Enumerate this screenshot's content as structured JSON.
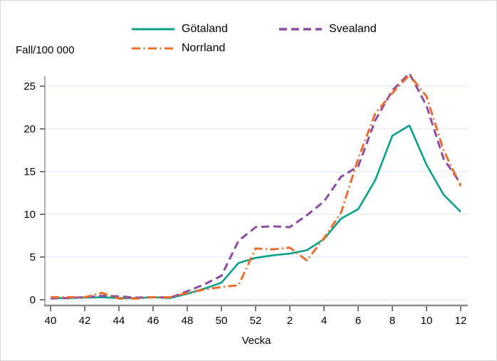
{
  "chart_data": {
    "type": "line",
    "title": "",
    "ylabel": "Fall/100 000",
    "xlabel": "Vecka",
    "categories": [
      "40",
      "41",
      "42",
      "43",
      "44",
      "45",
      "46",
      "47",
      "48",
      "49",
      "50",
      "51",
      "52",
      "1",
      "2",
      "3",
      "4",
      "5",
      "6",
      "7",
      "8",
      "9",
      "10",
      "11",
      "12"
    ],
    "x_tick_labels": [
      "40",
      "42",
      "44",
      "46",
      "48",
      "50",
      "52",
      "2",
      "4",
      "6",
      "8",
      "10",
      "12"
    ],
    "y_ticks": [
      0,
      5,
      10,
      15,
      20,
      25
    ],
    "ylim": [
      0,
      27
    ],
    "grid": "horizontal",
    "legend_position": "top",
    "series": [
      {
        "name": "Götaland",
        "color": "#0aa18b",
        "dash": "solid",
        "values": [
          0.2,
          0.2,
          0.25,
          0.3,
          0.2,
          0.2,
          0.3,
          0.2,
          0.7,
          1.3,
          2.0,
          4.3,
          4.9,
          5.2,
          5.4,
          5.8,
          7.1,
          9.5,
          10.6,
          14.0,
          19.2,
          20.4,
          15.8,
          12.3,
          10.3
        ]
      },
      {
        "name": "Svealand",
        "color": "#8c4ba4",
        "dash": "11,6",
        "values": [
          0.15,
          0.2,
          0.3,
          0.45,
          0.4,
          0.25,
          0.3,
          0.25,
          1.0,
          1.8,
          2.8,
          6.9,
          8.5,
          8.6,
          8.5,
          9.9,
          11.5,
          14.4,
          15.6,
          21.0,
          24.5,
          26.5,
          22.7,
          16.5,
          13.6
        ]
      },
      {
        "name": "Norrland",
        "color": "#ec6c2a",
        "dash": "12,4.5,2,4.5",
        "values": [
          0.3,
          0.3,
          0.3,
          0.8,
          0.15,
          0.15,
          0.3,
          0.3,
          0.8,
          1.2,
          1.5,
          1.7,
          6.0,
          5.9,
          6.1,
          4.6,
          7.2,
          10.2,
          16.5,
          21.8,
          24.2,
          26.3,
          23.8,
          17.5,
          13.3
        ]
      }
    ],
    "colors": {
      "grid": "#e1edf2",
      "axis": "#8c8c8c",
      "tick": "#404040",
      "text": "#000000"
    }
  }
}
